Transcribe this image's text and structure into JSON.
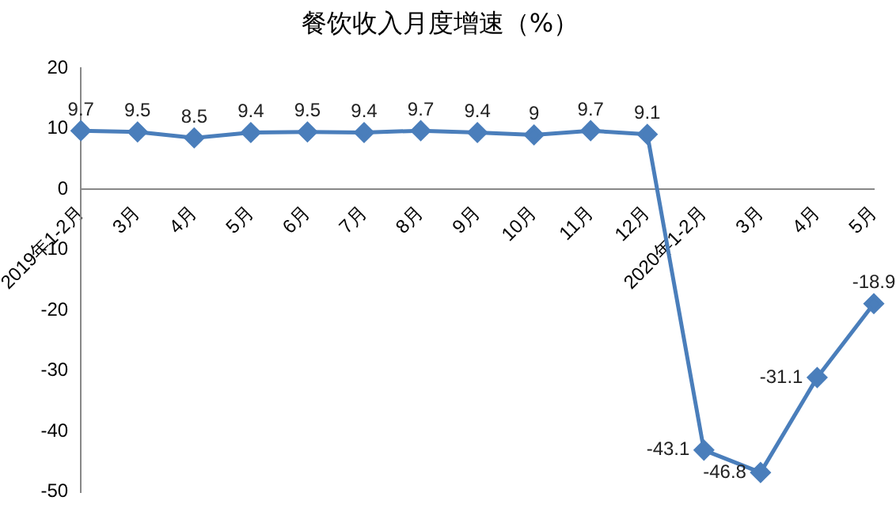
{
  "chart_data": {
    "type": "line",
    "title": "餐饮收入月度增速（%）",
    "categories": [
      "2019年1-2月",
      "3月",
      "4月",
      "5月",
      "6月",
      "7月",
      "8月",
      "9月",
      "10月",
      "11月",
      "12月",
      "2020年1-2月",
      "3月",
      "4月",
      "5月"
    ],
    "series": [
      {
        "color": "#4a7ebb",
        "values": [
          9.7,
          9.5,
          8.5,
          9.4,
          9.5,
          9.4,
          9.7,
          9.4,
          9,
          9.7,
          9.1,
          -43.1,
          -46.8,
          -31.1,
          -18.9
        ]
      }
    ],
    "ylim": [
      -50,
      20
    ],
    "yticks": [
      -50,
      -40,
      -30,
      -20,
      -10,
      0,
      10,
      20
    ],
    "marker": "diamond",
    "data_labels": true,
    "grid": false,
    "legend": false
  }
}
